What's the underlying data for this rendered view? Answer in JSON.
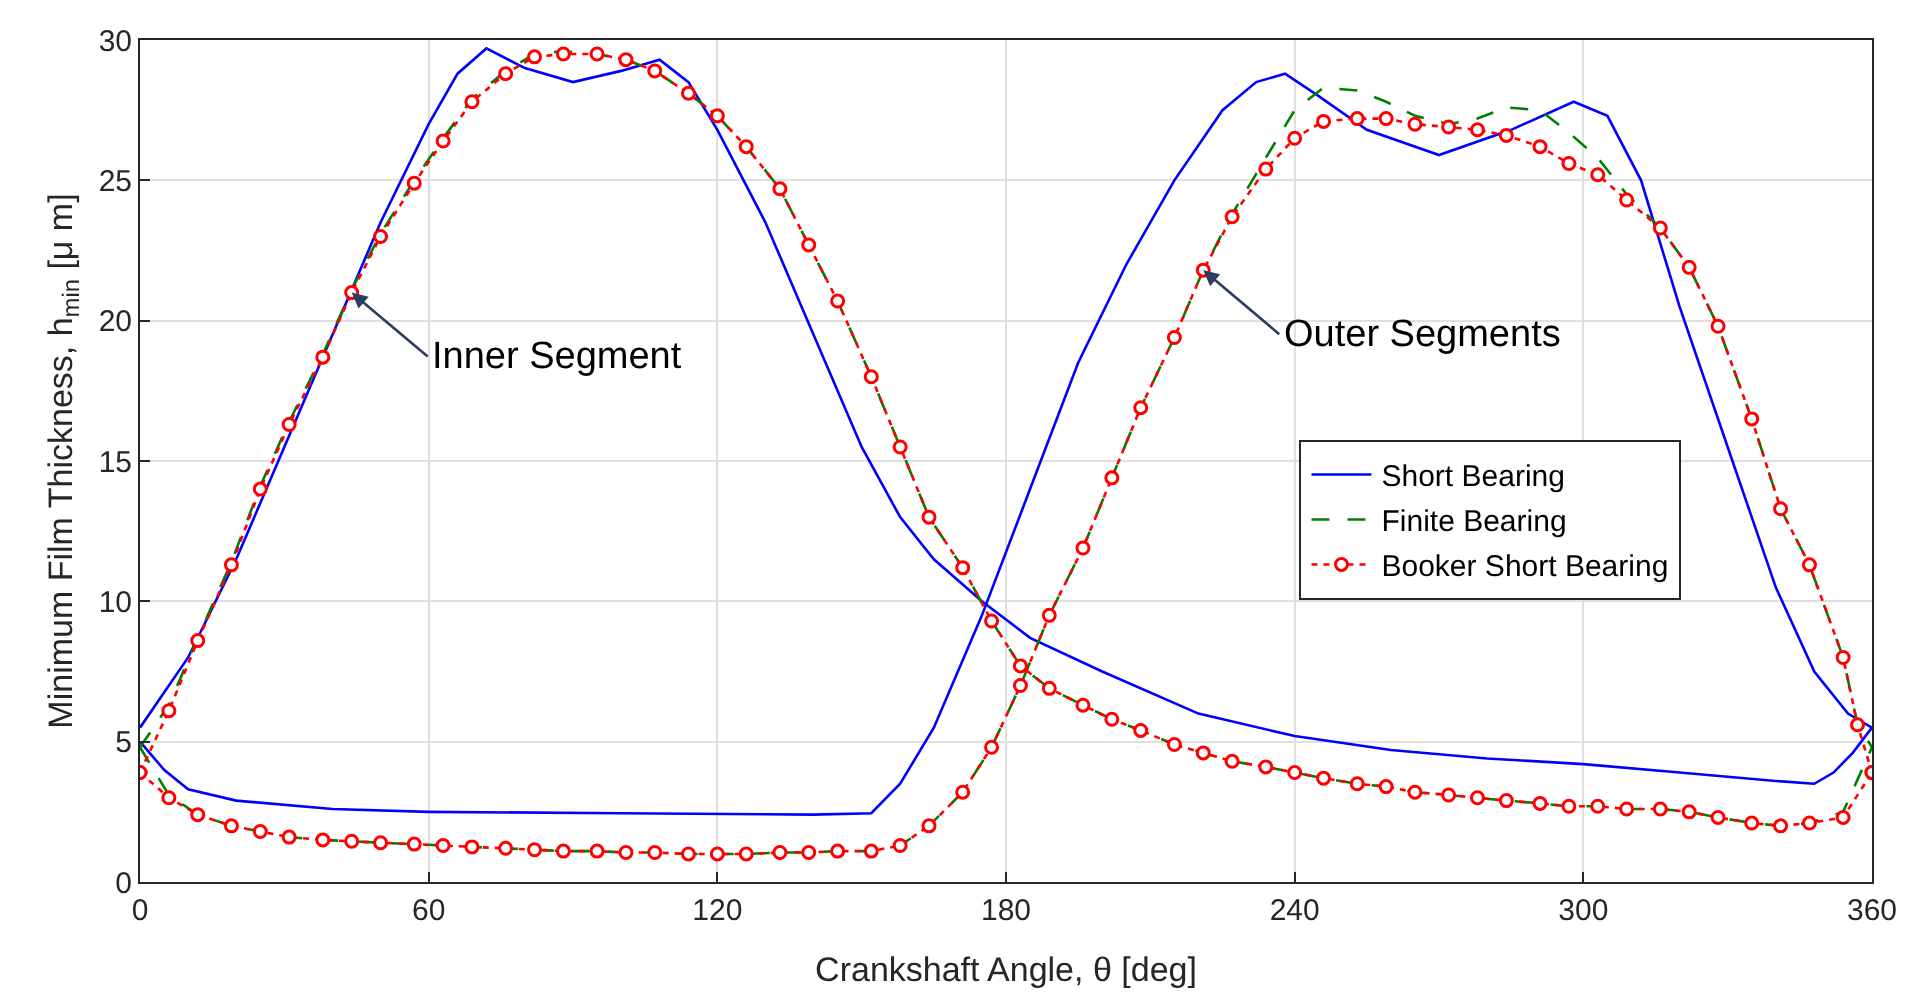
{
  "chart_data": {
    "type": "line",
    "xlabel": "Crankshaft Angle, θ [deg]",
    "ylabel": "Minimum Film Thickness, h$_{min}$ [μ m]",
    "xlim": [
      0,
      360
    ],
    "xticks": [
      0,
      60,
      120,
      180,
      240,
      300,
      360
    ],
    "ylim": [
      0,
      30
    ],
    "yticks": [
      0,
      5,
      10,
      15,
      20,
      25,
      30
    ],
    "grid": true,
    "legend": "right",
    "series": [
      {
        "name": "Short Bearing",
        "color": "#0000ff",
        "line_style": "solid",
        "marker": "none",
        "x": [
          0,
          10,
          20,
          30,
          40,
          50,
          60,
          66,
          72,
          80,
          90,
          100,
          108,
          114,
          120,
          130,
          140,
          150,
          158,
          165,
          175,
          185,
          200,
          220,
          240,
          260,
          280,
          300,
          320,
          340,
          348,
          352,
          356,
          360,
          null,
          0,
          5,
          10,
          20,
          40,
          60,
          100,
          140,
          152,
          158,
          165,
          175,
          185,
          195,
          205,
          215,
          225,
          232,
          238,
          245,
          255,
          270,
          285,
          298,
          305,
          312,
          320,
          330,
          340,
          348,
          355,
          360
        ],
        "values": [
          5.5,
          8,
          11.5,
          15.5,
          19.5,
          23.5,
          27,
          28.8,
          29.7,
          29,
          28.5,
          28.9,
          29.3,
          28.5,
          26.8,
          23.5,
          19.5,
          15.5,
          13,
          11.5,
          10,
          8.7,
          7.5,
          6,
          5.2,
          4.7,
          4.4,
          4.2,
          3.9,
          3.6,
          3.5,
          3.9,
          4.6,
          5.5,
          null,
          5,
          4,
          3.3,
          2.9,
          2.6,
          2.5,
          2.45,
          2.4,
          2.45,
          3.5,
          5.5,
          9.5,
          14,
          18.5,
          22,
          25,
          27.5,
          28.5,
          28.8,
          28,
          26.8,
          25.9,
          26.8,
          27.8,
          27.3,
          25,
          20.5,
          15.5,
          10.5,
          7.5,
          6,
          5.5
        ]
      },
      {
        "name": "Finite Bearing",
        "color": "#008000",
        "line_style": "dashed",
        "marker": "none",
        "x": [
          0,
          6,
          12,
          19,
          25,
          31,
          38,
          44,
          50,
          57,
          63,
          69,
          76,
          82,
          88,
          95,
          101,
          107,
          114,
          120,
          126,
          133,
          139,
          145,
          152,
          158,
          164,
          171,
          177,
          183,
          189,
          196,
          202,
          208,
          215,
          221,
          227,
          234,
          240,
          246,
          253,
          259,
          265,
          272,
          278,
          284,
          291,
          297,
          303,
          309,
          316,
          322,
          328,
          335,
          341,
          347,
          354,
          360,
          null,
          0,
          6,
          12,
          19,
          25,
          31,
          38,
          44,
          50,
          57,
          63,
          69,
          76,
          82,
          88,
          95,
          101,
          107,
          114,
          120,
          126,
          133,
          139,
          145,
          152,
          158,
          164,
          171,
          177,
          183,
          189,
          196,
          202,
          208,
          215,
          221,
          227,
          234,
          240,
          246,
          253,
          259,
          265,
          272,
          278,
          284,
          291,
          297,
          303,
          309,
          316,
          322,
          328,
          335,
          341,
          347,
          354,
          357,
          360
        ],
        "values": [
          4.8,
          6.3,
          8.7,
          11.4,
          14.1,
          16.4,
          18.8,
          21.1,
          23.1,
          25,
          26.5,
          27.9,
          28.9,
          29.5,
          29.6,
          29.5,
          29.3,
          28.9,
          28.1,
          27.3,
          26.2,
          24.7,
          22.7,
          20.7,
          18,
          15.5,
          13,
          11.2,
          9.3,
          7.7,
          6.9,
          6.3,
          5.8,
          5.4,
          4.9,
          4.6,
          4.3,
          4.1,
          3.9,
          3.7,
          3.5,
          3.4,
          3.2,
          3.1,
          3,
          2.9,
          2.8,
          2.7,
          2.7,
          2.6,
          2.6,
          2.5,
          2.3,
          2.1,
          2,
          2.1,
          2.5,
          4.8,
          null,
          4.8,
          3.1,
          2.4,
          2,
          1.8,
          1.6,
          1.5,
          1.45,
          1.4,
          1.35,
          1.3,
          1.25,
          1.2,
          1.15,
          1.1,
          1.1,
          1.05,
          1.05,
          1,
          1,
          1,
          1.05,
          1.05,
          1.1,
          1.1,
          1.3,
          2,
          3.2,
          4.8,
          7,
          9.5,
          11.9,
          14.4,
          16.9,
          19.4,
          21.8,
          23.8,
          25.8,
          27.5,
          28.3,
          28.2,
          27.8,
          27.3,
          27,
          27.2,
          27.6,
          27.5,
          26.7,
          25.8,
          24.5,
          23.3,
          21.9,
          19.8,
          16.5,
          13.3,
          11.3,
          8,
          5.6,
          4.8
        ]
      },
      {
        "name": "Booker Short Bearing",
        "color": "#ff0000",
        "line_style": "dotted",
        "marker": "circle",
        "x": [
          0,
          6,
          12,
          19,
          25,
          31,
          38,
          44,
          50,
          57,
          63,
          69,
          76,
          82,
          88,
          95,
          101,
          107,
          114,
          120,
          126,
          133,
          139,
          145,
          152,
          158,
          164,
          171,
          177,
          183,
          189,
          196,
          202,
          208,
          215,
          221,
          227,
          234,
          240,
          246,
          253,
          259,
          265,
          272,
          278,
          284,
          291,
          297,
          303,
          309,
          316,
          322,
          328,
          335,
          341,
          347,
          354,
          360,
          null,
          0,
          6,
          12,
          19,
          25,
          31,
          38,
          44,
          50,
          57,
          63,
          69,
          76,
          82,
          88,
          95,
          101,
          107,
          114,
          120,
          126,
          133,
          139,
          145,
          152,
          158,
          164,
          171,
          177,
          183,
          189,
          196,
          202,
          208,
          215,
          221,
          227,
          234,
          240,
          246,
          253,
          259,
          265,
          272,
          278,
          284,
          291,
          297,
          303,
          309,
          316,
          322,
          328,
          335,
          341,
          347,
          354,
          357,
          360
        ],
        "values": [
          3.9,
          6.1,
          8.6,
          11.3,
          14,
          16.3,
          18.7,
          21,
          23,
          24.9,
          26.4,
          27.8,
          28.8,
          29.4,
          29.5,
          29.5,
          29.3,
          28.9,
          28.1,
          27.3,
          26.2,
          24.7,
          22.7,
          20.7,
          18,
          15.5,
          13,
          11.2,
          9.3,
          7.7,
          6.9,
          6.3,
          5.8,
          5.4,
          4.9,
          4.6,
          4.3,
          4.1,
          3.9,
          3.7,
          3.5,
          3.4,
          3.2,
          3.1,
          3,
          2.9,
          2.8,
          2.7,
          2.7,
          2.6,
          2.6,
          2.5,
          2.3,
          2.1,
          2,
          2.1,
          2.3,
          3.9,
          null,
          3.9,
          3,
          2.4,
          2,
          1.8,
          1.6,
          1.5,
          1.45,
          1.4,
          1.35,
          1.3,
          1.25,
          1.2,
          1.15,
          1.1,
          1.1,
          1.05,
          1.05,
          1,
          1,
          1,
          1.05,
          1.05,
          1.1,
          1.1,
          1.3,
          2,
          3.2,
          4.8,
          7,
          9.5,
          11.9,
          14.4,
          16.9,
          19.4,
          21.8,
          23.7,
          25.4,
          26.5,
          27.1,
          27.2,
          27.2,
          27,
          26.9,
          26.8,
          26.6,
          26.2,
          25.6,
          25.2,
          24.3,
          23.3,
          21.9,
          19.8,
          16.5,
          13.3,
          11.3,
          8,
          5.6,
          3.9
        ]
      }
    ],
    "annotations": [
      {
        "text": "Inner Segment",
        "x": 44,
        "y": 21
      },
      {
        "text": "Outer Segments",
        "x": 221,
        "y": 21.8
      }
    ]
  }
}
